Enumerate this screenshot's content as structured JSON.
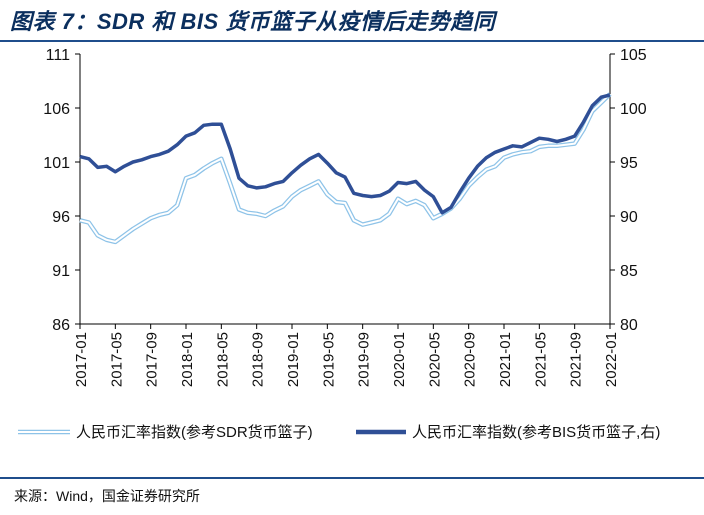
{
  "title": "图表 7：SDR 和 BIS 货币篮子从疫情后走势趋同",
  "source": "来源：Wind，国金证券研究所",
  "colors": {
    "sdr": "#8ec3e8",
    "bis": "#2f4f96",
    "title": "#0b2f5e",
    "rule": "#1f4e8c"
  },
  "chart_data": {
    "type": "line",
    "title": "",
    "xlabel": "",
    "ylabel_left": "",
    "ylabel_right": "",
    "ylim_left": [
      86,
      111
    ],
    "ylim_right": [
      80,
      105
    ],
    "yticks_left": [
      "111",
      "106",
      "101",
      "96",
      "91",
      "86"
    ],
    "yticks_right": [
      "105",
      "100",
      "95",
      "90",
      "85",
      "80"
    ],
    "xticks": [
      "2017-01",
      "2017-05",
      "2017-09",
      "2018-01",
      "2018-05",
      "2018-09",
      "2019-01",
      "2019-05",
      "2019-09",
      "2020-01",
      "2020-05",
      "2020-09",
      "2021-01",
      "2021-05",
      "2021-09",
      "2022-01"
    ],
    "grid": false,
    "legend_position": "bottom",
    "series": [
      {
        "name": "人民币汇率指数(参考SDR货币篮子)",
        "axis": "left",
        "style": "double-line",
        "points": [
          [
            "2017-01",
            95.6
          ],
          [
            "2017-02",
            95.4
          ],
          [
            "2017-03",
            94.2
          ],
          [
            "2017-04",
            93.8
          ],
          [
            "2017-05",
            93.6
          ],
          [
            "2017-06",
            94.2
          ],
          [
            "2017-07",
            94.8
          ],
          [
            "2017-08",
            95.3
          ],
          [
            "2017-09",
            95.8
          ],
          [
            "2017-10",
            96.1
          ],
          [
            "2017-11",
            96.3
          ],
          [
            "2017-12",
            97.0
          ],
          [
            "2018-01",
            99.5
          ],
          [
            "2018-02",
            99.8
          ],
          [
            "2018-03",
            100.4
          ],
          [
            "2018-04",
            100.9
          ],
          [
            "2018-05",
            101.3
          ],
          [
            "2018-06",
            99.0
          ],
          [
            "2018-07",
            96.6
          ],
          [
            "2018-08",
            96.3
          ],
          [
            "2018-09",
            96.2
          ],
          [
            "2018-10",
            96.0
          ],
          [
            "2018-11",
            96.5
          ],
          [
            "2018-12",
            96.9
          ],
          [
            "2019-01",
            97.8
          ],
          [
            "2019-02",
            98.4
          ],
          [
            "2019-03",
            98.8
          ],
          [
            "2019-04",
            99.2
          ],
          [
            "2019-05",
            98.0
          ],
          [
            "2019-06",
            97.3
          ],
          [
            "2019-07",
            97.2
          ],
          [
            "2019-08",
            95.6
          ],
          [
            "2019-09",
            95.2
          ],
          [
            "2019-10",
            95.4
          ],
          [
            "2019-11",
            95.6
          ],
          [
            "2019-12",
            96.2
          ],
          [
            "2020-01",
            97.6
          ],
          [
            "2020-02",
            97.1
          ],
          [
            "2020-03",
            97.4
          ],
          [
            "2020-04",
            97.0
          ],
          [
            "2020-05",
            95.8
          ],
          [
            "2020-06",
            96.2
          ],
          [
            "2020-07",
            96.7
          ],
          [
            "2020-08",
            97.6
          ],
          [
            "2020-09",
            98.8
          ],
          [
            "2020-10",
            99.6
          ],
          [
            "2020-11",
            100.3
          ],
          [
            "2020-12",
            100.6
          ],
          [
            "2021-01",
            101.4
          ],
          [
            "2021-02",
            101.7
          ],
          [
            "2021-03",
            101.9
          ],
          [
            "2021-04",
            102.0
          ],
          [
            "2021-05",
            102.4
          ],
          [
            "2021-06",
            102.5
          ],
          [
            "2021-07",
            102.5
          ],
          [
            "2021-08",
            102.6
          ],
          [
            "2021-09",
            102.7
          ],
          [
            "2021-10",
            104.0
          ],
          [
            "2021-11",
            105.7
          ],
          [
            "2021-12",
            106.5
          ],
          [
            "2022-01",
            107.3
          ]
        ]
      },
      {
        "name": "人民币汇率指数(参考BIS货币篮子,右)",
        "axis": "right",
        "style": "solid-thick",
        "points": [
          [
            "2017-01",
            95.5
          ],
          [
            "2017-02",
            95.3
          ],
          [
            "2017-03",
            94.5
          ],
          [
            "2017-04",
            94.6
          ],
          [
            "2017-05",
            94.1
          ],
          [
            "2017-06",
            94.6
          ],
          [
            "2017-07",
            95.0
          ],
          [
            "2017-08",
            95.2
          ],
          [
            "2017-09",
            95.5
          ],
          [
            "2017-10",
            95.7
          ],
          [
            "2017-11",
            96.0
          ],
          [
            "2017-12",
            96.6
          ],
          [
            "2018-01",
            97.4
          ],
          [
            "2018-02",
            97.7
          ],
          [
            "2018-03",
            98.4
          ],
          [
            "2018-04",
            98.5
          ],
          [
            "2018-05",
            98.5
          ],
          [
            "2018-06",
            96.2
          ],
          [
            "2018-07",
            93.5
          ],
          [
            "2018-08",
            92.8
          ],
          [
            "2018-09",
            92.6
          ],
          [
            "2018-10",
            92.7
          ],
          [
            "2018-11",
            93.0
          ],
          [
            "2018-12",
            93.2
          ],
          [
            "2019-01",
            94.0
          ],
          [
            "2019-02",
            94.7
          ],
          [
            "2019-03",
            95.3
          ],
          [
            "2019-04",
            95.7
          ],
          [
            "2019-05",
            94.9
          ],
          [
            "2019-06",
            94.0
          ],
          [
            "2019-07",
            93.6
          ],
          [
            "2019-08",
            92.1
          ],
          [
            "2019-09",
            91.9
          ],
          [
            "2019-10",
            91.8
          ],
          [
            "2019-11",
            91.9
          ],
          [
            "2019-12",
            92.3
          ],
          [
            "2020-01",
            93.1
          ],
          [
            "2020-02",
            93.0
          ],
          [
            "2020-03",
            93.2
          ],
          [
            "2020-04",
            92.4
          ],
          [
            "2020-05",
            91.8
          ],
          [
            "2020-06",
            90.3
          ],
          [
            "2020-07",
            90.8
          ],
          [
            "2020-08",
            92.2
          ],
          [
            "2020-09",
            93.5
          ],
          [
            "2020-10",
            94.6
          ],
          [
            "2020-11",
            95.4
          ],
          [
            "2020-12",
            95.9
          ],
          [
            "2021-01",
            96.2
          ],
          [
            "2021-02",
            96.5
          ],
          [
            "2021-03",
            96.4
          ],
          [
            "2021-04",
            96.8
          ],
          [
            "2021-05",
            97.2
          ],
          [
            "2021-06",
            97.1
          ],
          [
            "2021-07",
            96.9
          ],
          [
            "2021-08",
            97.1
          ],
          [
            "2021-09",
            97.4
          ],
          [
            "2021-10",
            98.7
          ],
          [
            "2021-11",
            100.2
          ],
          [
            "2021-12",
            101.0
          ],
          [
            "2022-01",
            101.2
          ]
        ]
      }
    ]
  }
}
